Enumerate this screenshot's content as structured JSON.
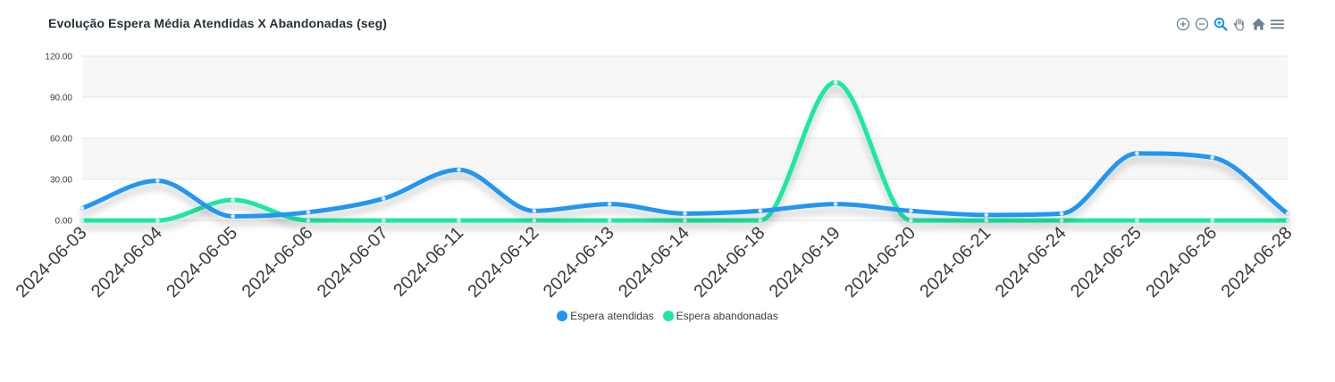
{
  "chart_data": {
    "type": "line",
    "title": "Evolução Espera Média Atendidas X Abandonadas (seg)",
    "xlabel": "",
    "ylabel": "",
    "categories": [
      "2024-06-03",
      "2024-06-04",
      "2024-06-05",
      "2024-06-06",
      "2024-06-07",
      "2024-06-11",
      "2024-06-12",
      "2024-06-13",
      "2024-06-14",
      "2024-06-18",
      "2024-06-19",
      "2024-06-20",
      "2024-06-21",
      "2024-06-24",
      "2024-06-25",
      "2024-06-26",
      "2024-06-28"
    ],
    "ylim": [
      0,
      120
    ],
    "yticks": [
      "0.00",
      "30.00",
      "60.00",
      "90.00",
      "120.00"
    ],
    "grid": "horizontal, alternating bands",
    "legend_position": "bottom-center",
    "series": [
      {
        "name": "Espera atendidas",
        "color": "#2196f3",
        "values": [
          9,
          29,
          3,
          6,
          16,
          37,
          7,
          12,
          5,
          7,
          12,
          7,
          4,
          5,
          49,
          46,
          5
        ]
      },
      {
        "name": "Espera abandonadas",
        "color": "#1de9a0",
        "values": [
          0,
          0,
          15,
          0,
          0,
          0,
          0,
          0,
          0,
          0,
          101,
          0,
          0,
          0,
          0,
          0,
          0
        ]
      }
    ]
  },
  "toolbar": {
    "icons": [
      "zoom-in-icon",
      "zoom-out-icon",
      "selection-zoom-icon",
      "pan-hand-icon",
      "reset-home-icon",
      "menu-icon"
    ]
  }
}
